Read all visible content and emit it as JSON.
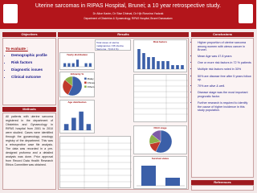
{
  "header": {
    "title": "Uterine sarcomas in RIPAS Hospital, Brunei;  a 10 year retrospective study.",
    "authors": "Dr Alice Karim, Dr Sise Dhimal, Dr Hjh Rosnina Yadzak",
    "affiliation": "Department of Obstetrics & Gynaecology, RIPAS Hospital, Brunei Darussalam"
  },
  "objectives": {
    "heading": "Objectives",
    "intro": "To evaluate :",
    "items": [
      "Demographic profile",
      "Risk factors",
      "Diagnostic issues",
      "Clinical outcome"
    ]
  },
  "methods": {
    "heading": "Methods",
    "text": "All patients with uterine sarcoma registered in the department of Obstetrics and Gynaecology in RIPAS hospital from 2001 to 2010 were studied. Cases were identified through the gynaecology oncology registry of the department. This was a retrospective case file analysis. The data was recorded in a pre-designed proforma and a detailed analysis was done. Prior approval from Record Data Health Research Ethics Committee was obtained."
  },
  "results": {
    "heading": "Results",
    "summary": "Total cases of uterine malignancies =36 Uterine Sarcoma : 7(19.4 %)",
    "charts": [
      {
        "type": "bar",
        "title": "Yearly distribution",
        "categories": [
          null,
          null,
          null,
          null,
          null,
          null,
          null
        ],
        "values": [
          1,
          1,
          1,
          2,
          0,
          1,
          1
        ],
        "color": "#3b5fa8",
        "ylim": [
          0,
          2.5
        ]
      },
      {
        "type": "pie",
        "title": "Ethnicity %",
        "categories": [
          "Malay",
          "Chinese",
          "Others"
        ],
        "values": [
          57,
          29,
          14
        ],
        "colors": [
          "#3b5fa8",
          "#c0392b",
          "#8bb04a"
        ]
      },
      {
        "type": "bar",
        "title": "Age distribution",
        "categories": [
          null,
          null,
          null,
          null
        ],
        "values": [
          1,
          2,
          3,
          1
        ],
        "color": "#3b5fa8",
        "ylim": [
          0,
          4
        ]
      },
      {
        "type": "bar",
        "title": "Risk factors",
        "categories": [
          null,
          null,
          null,
          null,
          null,
          null,
          null,
          null,
          null,
          null
        ],
        "values": [
          5,
          4,
          3,
          3,
          2,
          2,
          2,
          1,
          1,
          1
        ],
        "color": "#3b5fa8",
        "ylim": [
          0,
          6
        ]
      },
      {
        "type": "pie",
        "title": "FIGO stage",
        "categories": [
          null,
          null,
          null,
          null
        ],
        "values": [
          4,
          1,
          1,
          1
        ],
        "colors": [
          "#3b5fa8",
          "#c0392b",
          "#8bb04a",
          "#7d5ba6"
        ]
      },
      {
        "type": "bar",
        "title": "Survival status",
        "categories": [
          null,
          null
        ],
        "values": [
          5,
          2
        ],
        "color": "#3b5fa8",
        "ylim": [
          0,
          6
        ]
      }
    ]
  },
  "conclusions": {
    "heading": "Conclusions",
    "items": [
      "Higher proportion of uterine sarcoma among women with uterus cancer in Brunei.",
      "Mean Age was 47.8 years",
      "One or more risk factors in 72 % patients",
      "Multiple risk factors noted in 30%",
      "50% are disease free after 5 years follow up.",
      "70% are alive & well.",
      "Disease stage was the most important prognostic factor.",
      "Further research is required to identify the cause of higher incidence in this study population."
    ]
  },
  "references": {
    "heading": "References"
  }
}
